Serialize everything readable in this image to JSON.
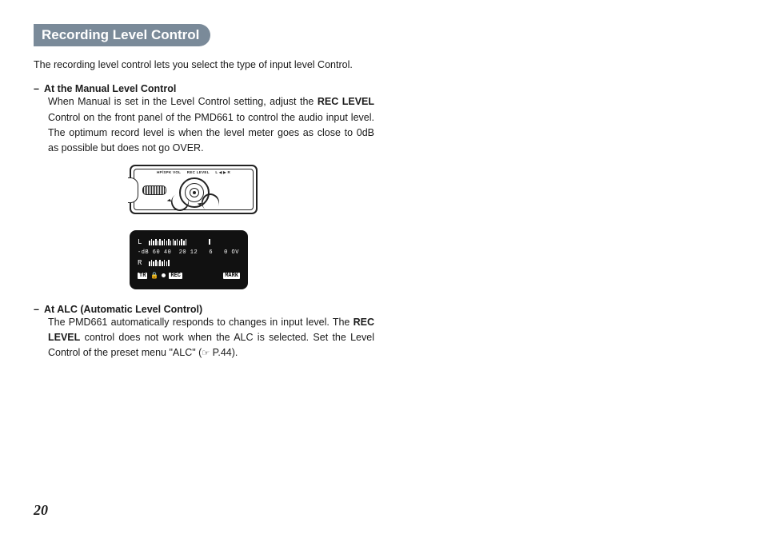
{
  "page": {
    "number": "20",
    "heading": "Recording Level Control",
    "intro": "The recording level control lets you select the type of input level Control.",
    "sections": [
      {
        "title": "At the Manual Level Control",
        "body_pre": "When Manual is set in the Level Control setting, adjust the ",
        "body_bold1": "REC LEVEL",
        "body_mid": " Control on the front panel of the PMD661 to control the audio input level. The optimum record level is when the level meter goes as close to 0dB as possible but does not go OVER.",
        "has_figure": true
      },
      {
        "title": "At ALC (Automatic Level Control)",
        "body_pre": "The PMD661 automatically responds to changes in input level. The ",
        "body_bold1": "REC LEVEL",
        "body_mid": " control does not work when the ALC is selected. Set the Level Control of the preset menu \"ALC\" (",
        "ref_icon": "☞",
        "ref_text": " P.44).",
        "has_figure": false
      }
    ],
    "device_labels": {
      "vol": "HP/SPK VOL",
      "rec": "REC LEVEL",
      "lr": "L ◀ ▶ R"
    },
    "lcd": {
      "left_label": "L",
      "right_label": "R",
      "scale": "-dB 60 40  20 12   6   0 OV",
      "tag_tr": "TR",
      "rec": "REC",
      "mark": "MARK",
      "l_bars": [
        6,
        8,
        6,
        8,
        6,
        8,
        6,
        8,
        6,
        8,
        6,
        8,
        6,
        8,
        6,
        8,
        6,
        8
      ],
      "r_bars": [
        6,
        8,
        6,
        8,
        6,
        8,
        6,
        8,
        6,
        8
      ]
    }
  }
}
